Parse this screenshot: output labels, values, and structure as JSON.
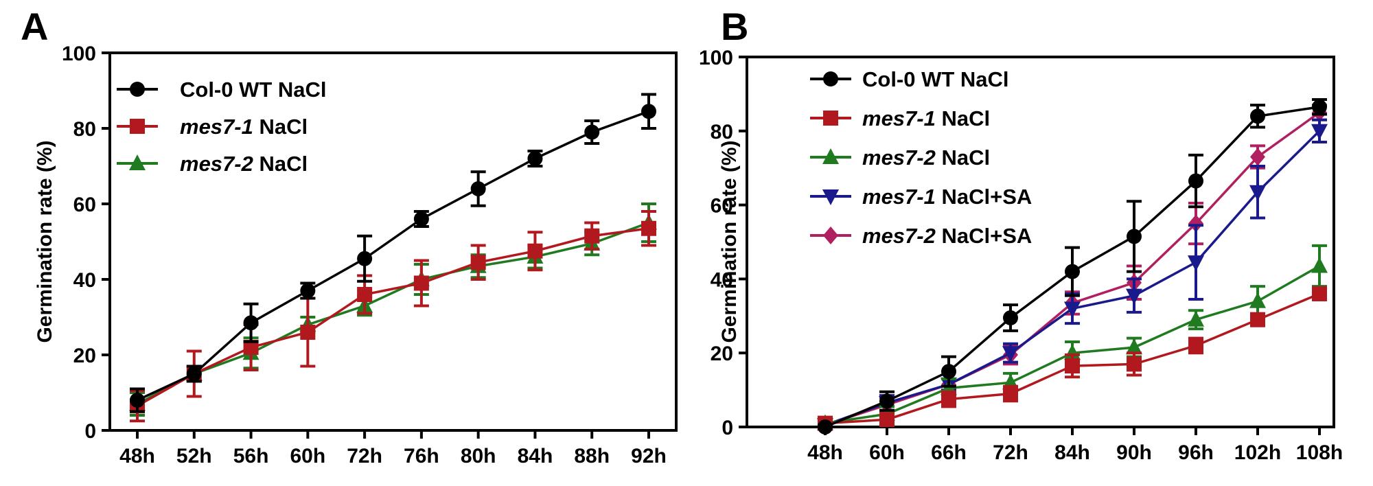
{
  "chart_data": [
    {
      "type": "line",
      "panel_label": "A",
      "ylabel": "Germination rate (%)",
      "xlabel": "",
      "ylim": [
        0,
        100
      ],
      "y_ticks": [
        "0",
        "20",
        "40",
        "60",
        "80",
        "100"
      ],
      "y_tick_values": [
        0,
        20,
        40,
        60,
        80,
        100
      ],
      "categories": [
        "48h",
        "52h",
        "56h",
        "60h",
        "72h",
        "76h",
        "80h",
        "84h",
        "88h",
        "92h"
      ],
      "legend_position": "top-left",
      "series": [
        {
          "name": "Col-0 WT NaCl",
          "name_italic": "",
          "name_rest": "Col-0 WT NaCl",
          "color": "#000000",
          "marker": "circle",
          "values": [
            8,
            15,
            28.5,
            37,
            45.5,
            56,
            64,
            72,
            79,
            84.5
          ],
          "errors": [
            3,
            2,
            5,
            2,
            6,
            2,
            4.5,
            2,
            3,
            4.5
          ]
        },
        {
          "name": "mes7-1 NaCl",
          "name_italic": "mes7-1",
          "name_rest": " NaCl",
          "color": "#b2191e",
          "marker": "square",
          "values": [
            6.5,
            15,
            22,
            26,
            36,
            39,
            44.5,
            47.5,
            51.5,
            53.5
          ],
          "errors": [
            4,
            6,
            6,
            9,
            5,
            6,
            4.5,
            5,
            3.5,
            4.5
          ]
        },
        {
          "name": "mes7-2 NaCl",
          "name_italic": "mes7-2",
          "name_rest": " NaCl",
          "color": "#207a20",
          "marker": "triangle",
          "values": [
            7,
            15,
            20.5,
            28,
            33,
            40,
            43.5,
            46,
            49.5,
            55
          ],
          "errors": [
            3,
            2,
            4,
            2,
            2.5,
            4,
            3,
            3,
            3,
            5
          ]
        }
      ]
    },
    {
      "type": "line",
      "panel_label": "B",
      "ylabel": "Germination rate (%)",
      "xlabel": "",
      "ylim": [
        0,
        100
      ],
      "y_ticks": [
        "0",
        "20",
        "40",
        "60",
        "80",
        "100"
      ],
      "y_tick_values": [
        0,
        20,
        40,
        60,
        80,
        100
      ],
      "categories": [
        "48h",
        "60h",
        "66h",
        "72h",
        "84h",
        "90h",
        "96h",
        "102h",
        "108h"
      ],
      "legend_position": "top-left",
      "series": [
        {
          "name": "Col-0 WT NaCl",
          "name_italic": "",
          "name_rest": "Col-0 WT  NaCl",
          "color": "#000000",
          "marker": "circle",
          "values": [
            0,
            7,
            15,
            29.5,
            42,
            51.5,
            66.5,
            84,
            86.5
          ],
          "errors": [
            0.5,
            2.5,
            4,
            3.5,
            6.5,
            9.5,
            7,
            3,
            2
          ]
        },
        {
          "name": "mes7-1 NaCl",
          "name_italic": "mes7-1",
          "name_rest": " NaCl",
          "color": "#b2191e",
          "marker": "square",
          "values": [
            1,
            2,
            7.5,
            9,
            16.5,
            17,
            22,
            29,
            36
          ],
          "errors": [
            0.5,
            1.5,
            2,
            2,
            3,
            3,
            2,
            1.5,
            1.5
          ]
        },
        {
          "name": "mes7-2 NaCl",
          "name_italic": "mes7-2",
          "name_rest": " NaCl",
          "color": "#207a20",
          "marker": "triangle",
          "values": [
            1,
            3.5,
            10.5,
            12,
            20,
            21.5,
            29,
            34,
            43.5
          ],
          "errors": [
            0.5,
            2,
            2.5,
            2.5,
            3,
            2.5,
            2.5,
            4,
            5.5
          ]
        },
        {
          "name": "mes7-1 NaCl+SA",
          "name_italic": "mes7-1",
          "name_rest": " NaCl+SA",
          "color": "#1a1a8c",
          "marker": "triangle-down",
          "values": [
            0.5,
            6.5,
            11.5,
            20,
            32,
            35.5,
            44.5,
            63.5,
            80
          ],
          "errors": [
            0.5,
            2,
            1.5,
            2.5,
            4,
            4.5,
            10,
            7,
            3
          ]
        },
        {
          "name": "mes7-2 NaCl+SA",
          "name_italic": "mes7-2",
          "name_rest": " NaCl+SA",
          "color": "#b02060",
          "marker": "diamond",
          "values": [
            0.5,
            6,
            11.5,
            19.5,
            33.5,
            39,
            55,
            73,
            85
          ],
          "errors": [
            0.5,
            2,
            1.5,
            2.5,
            3,
            4.5,
            5.5,
            3,
            2
          ]
        }
      ]
    }
  ]
}
